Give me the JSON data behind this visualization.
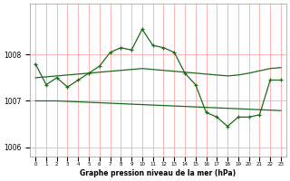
{
  "title": "Graphe pression niveau de la mer (hPa)",
  "background_color": "#ffffff",
  "grid_color_vertical": "#ffaaaa",
  "grid_color_horizontal": "#ffaaaa",
  "line_color": "#1a6b1a",
  "hours": [
    0,
    1,
    2,
    3,
    4,
    5,
    6,
    7,
    8,
    9,
    10,
    11,
    12,
    13,
    14,
    15,
    16,
    17,
    18,
    19,
    20,
    21,
    22,
    23
  ],
  "x_labels": [
    "0",
    "1",
    "2",
    "3",
    "4",
    "5",
    "6",
    "7",
    "8",
    "9",
    "10",
    "11",
    "12",
    "13",
    "14",
    "15",
    "16",
    "17",
    "18",
    "19",
    "20",
    "21",
    "22",
    "23"
  ],
  "line_main": [
    1007.8,
    1007.35,
    1007.5,
    1007.3,
    1007.45,
    1007.6,
    1007.75,
    1008.05,
    1008.15,
    1008.1,
    1008.55,
    1008.2,
    1008.15,
    1008.05,
    1007.6,
    1007.35,
    1006.75,
    1006.65,
    1006.45,
    1006.65,
    1006.65,
    1006.7,
    1007.45,
    1007.45
  ],
  "line_upper": [
    1007.5,
    1007.52,
    1007.54,
    1007.56,
    1007.58,
    1007.6,
    1007.62,
    1007.64,
    1007.66,
    1007.68,
    1007.7,
    1007.68,
    1007.66,
    1007.64,
    1007.62,
    1007.6,
    1007.58,
    1007.56,
    1007.54,
    1007.56,
    1007.6,
    1007.65,
    1007.7,
    1007.72
  ],
  "line_lower": [
    1007.0,
    1007.0,
    1007.0,
    1006.99,
    1006.98,
    1006.97,
    1006.96,
    1006.95,
    1006.94,
    1006.93,
    1006.92,
    1006.91,
    1006.9,
    1006.89,
    1006.88,
    1006.87,
    1006.86,
    1006.85,
    1006.84,
    1006.83,
    1006.82,
    1006.81,
    1006.8,
    1006.79
  ],
  "ylim": [
    1005.8,
    1009.1
  ],
  "yticks": [
    1006,
    1007,
    1008
  ],
  "figsize": [
    3.2,
    2.0
  ],
  "dpi": 100
}
